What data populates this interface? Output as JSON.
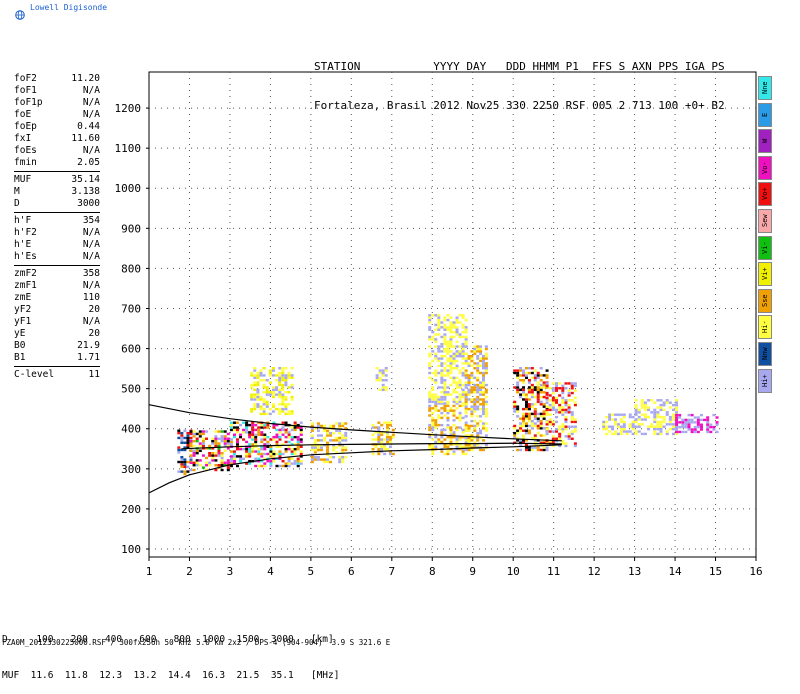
{
  "logo": {
    "text": "Lowell Digisonde",
    "color": "#1a5fd0"
  },
  "header": {
    "line1": "STATION           YYYY DAY   DDD HHMM P1  FFS S AXN PPS IGA PS",
    "line2": "Fortaleza, Brasil 2012 Nov25 330 2250 RSF 005 2 713 100 +0+ B2"
  },
  "scaled_params": {
    "group1": [
      {
        "label": "foF2",
        "value": "11.20"
      },
      {
        "label": "foF1",
        "value": "N/A"
      },
      {
        "label": "foF1p",
        "value": "N/A"
      },
      {
        "label": "foE",
        "value": "N/A"
      },
      {
        "label": "foEp",
        "value": "0.44"
      },
      {
        "label": "fxI",
        "value": "11.60"
      },
      {
        "label": "foEs",
        "value": "N/A"
      },
      {
        "label": "fmin",
        "value": "2.05"
      }
    ],
    "group2": [
      {
        "label": "MUF",
        "value": "35.14"
      },
      {
        "label": "M",
        "value": "3.138"
      },
      {
        "label": "D",
        "value": "3000"
      }
    ],
    "group3": [
      {
        "label": "h'F",
        "value": "354"
      },
      {
        "label": "h'F2",
        "value": "N/A"
      },
      {
        "label": "h'E",
        "value": "N/A"
      },
      {
        "label": "h'Es",
        "value": "N/A"
      }
    ],
    "group4": [
      {
        "label": "zmF2",
        "value": "358"
      },
      {
        "label": "zmF1",
        "value": "N/A"
      },
      {
        "label": "zmE",
        "value": "110"
      },
      {
        "label": "yF2",
        "value": "20"
      },
      {
        "label": "yF1",
        "value": "N/A"
      },
      {
        "label": "yE",
        "value": "20"
      },
      {
        "label": "B0",
        "value": "21.9"
      },
      {
        "label": "B1",
        "value": "1.71"
      }
    ],
    "group5": [
      {
        "label": "C-level",
        "value": "11"
      }
    ]
  },
  "legend": [
    {
      "label": "Nne",
      "color": "#33e8e8"
    },
    {
      "label": "E",
      "color": "#2a9be6"
    },
    {
      "label": "W",
      "color": "#a020c0"
    },
    {
      "label": "Vo-",
      "color": "#f010c0"
    },
    {
      "label": "Vo+",
      "color": "#f01010"
    },
    {
      "label": "Sew",
      "color": "#f8a8a8"
    },
    {
      "label": "Vi-",
      "color": "#10c010"
    },
    {
      "label": "Vi+",
      "color": "#f0f000"
    },
    {
      "label": "Sse",
      "color": "#f0a000"
    },
    {
      "label": "Hi-",
      "color": "#ffff40"
    },
    {
      "label": "Nnw",
      "color": "#1050a0"
    },
    {
      "label": "Hi+",
      "color": "#a8a8f0"
    }
  ],
  "chart_data": {
    "type": "scatter",
    "xlim": [
      1,
      16
    ],
    "ylim": [
      80,
      1290
    ],
    "xticks": [
      "1",
      "2",
      "3",
      "4",
      "5",
      "6",
      "7",
      "8",
      "9",
      "10",
      "11",
      "12",
      "13",
      "14",
      "15",
      "16"
    ],
    "yticks": [
      "100",
      "200",
      "300",
      "400",
      "500",
      "600",
      "700",
      "800",
      "900",
      "1000",
      "1100",
      "1200"
    ],
    "grid": true,
    "echo_blocks": [
      {
        "x0": 1.7,
        "x1": 2.0,
        "y0": 290,
        "y1": 400,
        "colors": [
          "#f0a000",
          "#f01010",
          "#1050a0",
          "#a8a8f0",
          "#000000"
        ]
      },
      {
        "x0": 2.0,
        "x1": 3.0,
        "y0": 300,
        "y1": 400,
        "colors": [
          "#f0a000",
          "#f01010",
          "#10c010",
          "#a8a8f0",
          "#ffff40",
          "#f010c0",
          "#000000"
        ]
      },
      {
        "x0": 3.0,
        "x1": 4.8,
        "y0": 310,
        "y1": 420,
        "colors": [
          "#f0a000",
          "#f01010",
          "#a8a8f0",
          "#ffff40",
          "#f010c0",
          "#33e8e8",
          "#000000"
        ]
      },
      {
        "x0": 3.5,
        "x1": 4.5,
        "y0": 440,
        "y1": 560,
        "colors": [
          "#ffff40",
          "#a8a8f0",
          "#f0f000"
        ]
      },
      {
        "x0": 5.0,
        "x1": 5.9,
        "y0": 320,
        "y1": 420,
        "colors": [
          "#f0a000",
          "#ffff40",
          "#a8a8f0"
        ]
      },
      {
        "x0": 6.5,
        "x1": 7.0,
        "y0": 340,
        "y1": 420,
        "colors": [
          "#a8a8f0",
          "#f0a000",
          "#ffff40"
        ]
      },
      {
        "x0": 6.6,
        "x1": 6.9,
        "y0": 500,
        "y1": 560,
        "colors": [
          "#ffff40",
          "#a8a8f0"
        ]
      },
      {
        "x0": 7.9,
        "x1": 8.8,
        "y0": 340,
        "y1": 470,
        "colors": [
          "#a8a8f0",
          "#ffff40",
          "#f0a000"
        ]
      },
      {
        "x0": 7.9,
        "x1": 8.8,
        "y0": 470,
        "y1": 690,
        "colors": [
          "#ffff40",
          "#a8a8f0",
          "#ffff40"
        ]
      },
      {
        "x0": 8.8,
        "x1": 9.3,
        "y0": 350,
        "y1": 610,
        "colors": [
          "#ffff40",
          "#a8a8f0",
          "#f0a000"
        ]
      },
      {
        "x0": 10.0,
        "x1": 10.8,
        "y0": 350,
        "y1": 560,
        "colors": [
          "#a8a8f0",
          "#ffff40",
          "#f01010",
          "#000000",
          "#f0a000"
        ]
      },
      {
        "x0": 10.8,
        "x1": 11.5,
        "y0": 360,
        "y1": 520,
        "colors": [
          "#ffff40",
          "#a8a8f0",
          "#f01010"
        ]
      },
      {
        "x0": 12.2,
        "x1": 13.0,
        "y0": 390,
        "y1": 440,
        "colors": [
          "#a8a8f0",
          "#ffff40"
        ]
      },
      {
        "x0": 13.0,
        "x1": 14.0,
        "y0": 390,
        "y1": 480,
        "colors": [
          "#a8a8f0",
          "#ffff40"
        ]
      },
      {
        "x0": 14.0,
        "x1": 15.0,
        "y0": 395,
        "y1": 440,
        "colors": [
          "#a8a8f0",
          "#f010c0"
        ]
      }
    ],
    "traces": [
      {
        "x": [
          1.0,
          2.0,
          3.0,
          4.0,
          5.0,
          6.0,
          7.0,
          8.0,
          9.0,
          10.0,
          11.2
        ],
        "y": [
          460,
          440,
          425,
          413,
          404,
          397,
          391,
          385,
          380,
          375,
          370
        ]
      },
      {
        "x": [
          1.8,
          3.0,
          4.0,
          5.0,
          6.0,
          7.0,
          8.0,
          9.0,
          10.0,
          11.2
        ],
        "y": [
          350,
          355,
          358,
          360,
          361,
          362,
          363,
          363,
          364,
          362
        ]
      },
      {
        "x": [
          1.0,
          1.5,
          2.0,
          3.0,
          4.0,
          5.0,
          6.0,
          7.0,
          8.0,
          9.0,
          10.0,
          11.2
        ],
        "y": [
          240,
          265,
          285,
          310,
          325,
          335,
          340,
          345,
          348,
          352,
          355,
          360
        ]
      }
    ]
  },
  "muf_table": {
    "line1": "D     100   200   400   600   800  1000  1500  3000   [km]",
    "line2": "MUF  11.6  11.8  12.3  13.2  14.4  16.3  21.5  35.1   [MHz]"
  },
  "footer": "FZA0M_2012330225000.RSF / 300fx256h 50 kHz 5.0 km 2x2 / DPS-4 (904-904)  3.9 S 321.6 E"
}
